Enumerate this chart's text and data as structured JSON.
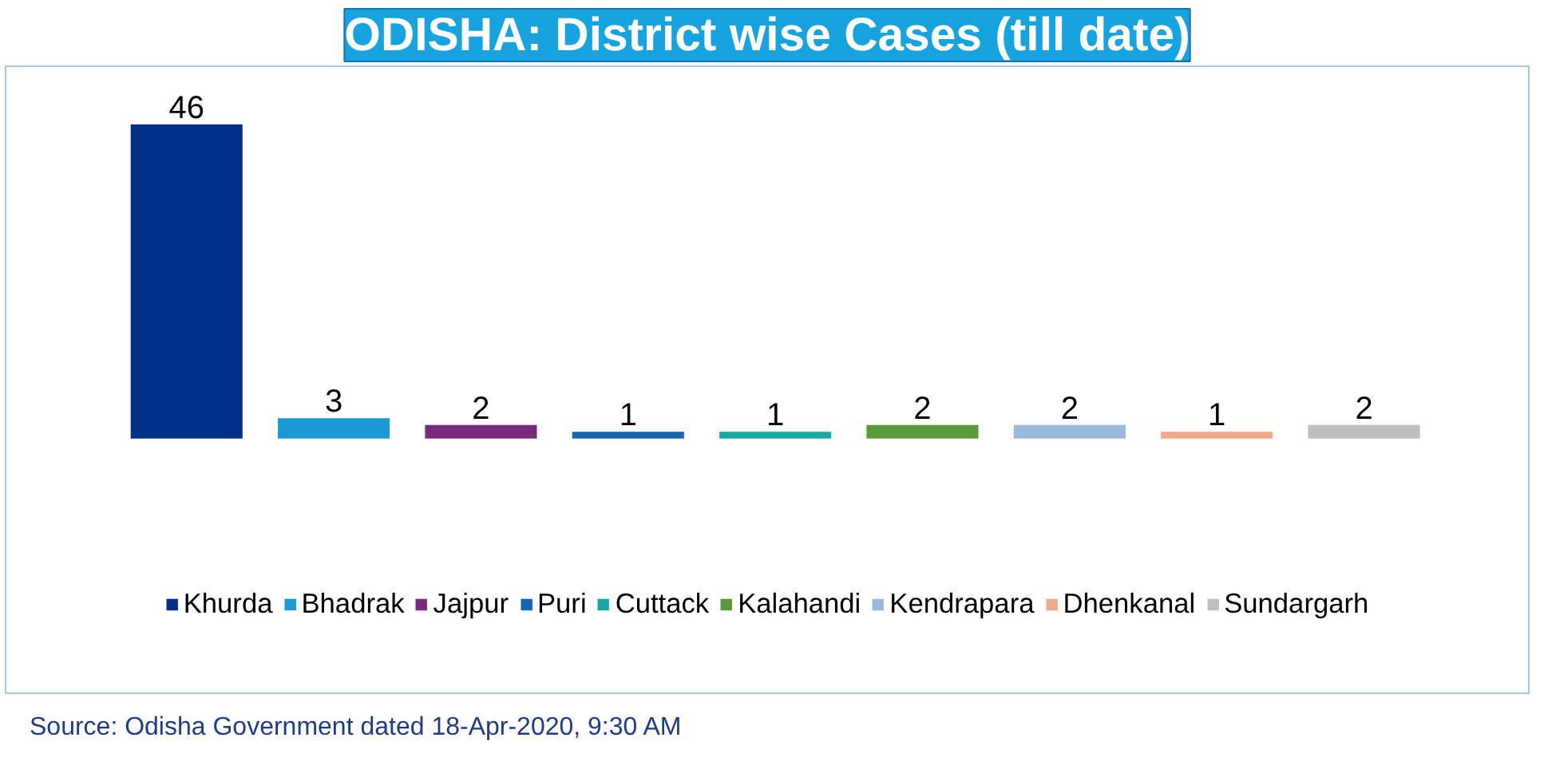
{
  "chart_data": {
    "type": "bar",
    "title": "ODISHA: District wise Cases (till date)",
    "categories": [
      null,
      null,
      null,
      null,
      null,
      null,
      null,
      null,
      null
    ],
    "stacked": true,
    "series": [
      {
        "name": "Khurda",
        "color": "#003087",
        "values": [
          46,
          null,
          null,
          null,
          null,
          null,
          null,
          null,
          null
        ]
      },
      {
        "name": "Bhadrak",
        "color": "#1b9ad6",
        "values": [
          null,
          3,
          null,
          null,
          null,
          null,
          null,
          null,
          null
        ]
      },
      {
        "name": "Jajpur",
        "color": "#7a2a7e",
        "values": [
          null,
          null,
          2,
          null,
          null,
          null,
          null,
          null,
          null
        ]
      },
      {
        "name": "Puri",
        "color": "#1565b0",
        "values": [
          null,
          null,
          null,
          1,
          null,
          null,
          null,
          null,
          null
        ]
      },
      {
        "name": "Cuttack",
        "color": "#1aa6a6",
        "values": [
          null,
          null,
          null,
          null,
          1,
          null,
          null,
          null,
          null
        ]
      },
      {
        "name": "Kalahandi",
        "color": "#5b9a3c",
        "values": [
          null,
          null,
          null,
          null,
          null,
          2,
          null,
          null,
          null
        ]
      },
      {
        "name": "Kendrapara",
        "color": "#9bb8dd",
        "values": [
          null,
          null,
          null,
          null,
          null,
          null,
          2,
          null,
          null
        ]
      },
      {
        "name": "Dhenkanal",
        "color": "#f2a98b",
        "values": [
          null,
          null,
          null,
          null,
          null,
          null,
          null,
          1,
          null
        ]
      },
      {
        "name": "Sundargarh",
        "color": "#bfbfbf",
        "values": [
          null,
          null,
          null,
          null,
          null,
          null,
          null,
          null,
          2
        ]
      }
    ],
    "data_labels": true,
    "legend": "bottom",
    "annotations": [
      "Source: Odisha Government dated 18-Apr-2020, 9:30 AM"
    ]
  }
}
